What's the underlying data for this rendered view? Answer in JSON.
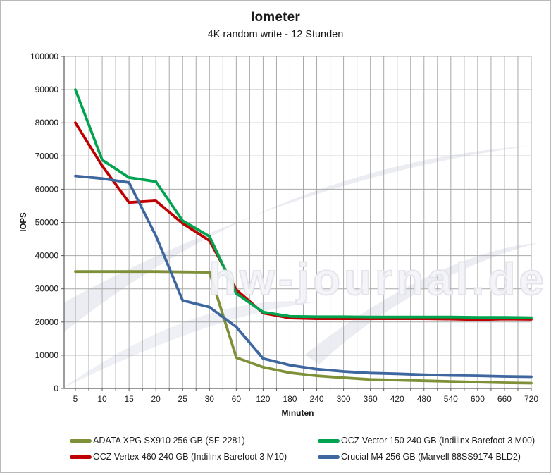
{
  "header": {
    "title": "Iometer",
    "subtitle": "4K random write - 12 Stunden"
  },
  "watermark_text": "hw-journal.de",
  "chart_data": {
    "type": "line",
    "title": "Iometer",
    "subtitle": "4K random write - 12 Stunden",
    "xlabel": "Minuten",
    "ylabel": "IOPS",
    "ylim": [
      0,
      100000
    ],
    "yticks": [
      0,
      10000,
      20000,
      30000,
      40000,
      50000,
      60000,
      70000,
      80000,
      90000,
      100000
    ],
    "grid": true,
    "legend_position": "bottom",
    "categories": [
      5,
      10,
      15,
      20,
      25,
      30,
      60,
      120,
      180,
      240,
      300,
      360,
      420,
      480,
      540,
      600,
      660,
      720
    ],
    "series": [
      {
        "name": "ADATA XPG SX910 256 GB (SF-2281)",
        "color": "#7E9038",
        "values": [
          35200,
          35200,
          35200,
          35200,
          35100,
          35000,
          9300,
          6400,
          4700,
          3800,
          3200,
          2700,
          2500,
          2300,
          2100,
          1900,
          1700,
          1600
        ]
      },
      {
        "name": "OCZ Vector 150 240 GB (Indilinx Barefoot 3 M00)",
        "color": "#00A34F",
        "values": [
          90000,
          68800,
          63500,
          62300,
          50500,
          45800,
          28600,
          23000,
          21700,
          21600,
          21600,
          21500,
          21500,
          21500,
          21500,
          21400,
          21400,
          21300
        ]
      },
      {
        "name": "OCZ Vertex 460 240 GB (Indilinx Barefoot 3 M10)",
        "color": "#C00000",
        "values": [
          80000,
          67000,
          56000,
          56500,
          49700,
          44500,
          29700,
          22700,
          21200,
          21000,
          21000,
          21000,
          21000,
          21000,
          20900,
          20700,
          20900,
          20800
        ]
      },
      {
        "name": "Crucial M4 256 GB (Marvell 88SS9174-BLD2)",
        "color": "#3E67A0",
        "values": [
          64000,
          63200,
          62000,
          46000,
          26500,
          24500,
          18500,
          9000,
          7000,
          5800,
          5100,
          4600,
          4400,
          4100,
          3900,
          3800,
          3600,
          3500
        ]
      }
    ]
  }
}
